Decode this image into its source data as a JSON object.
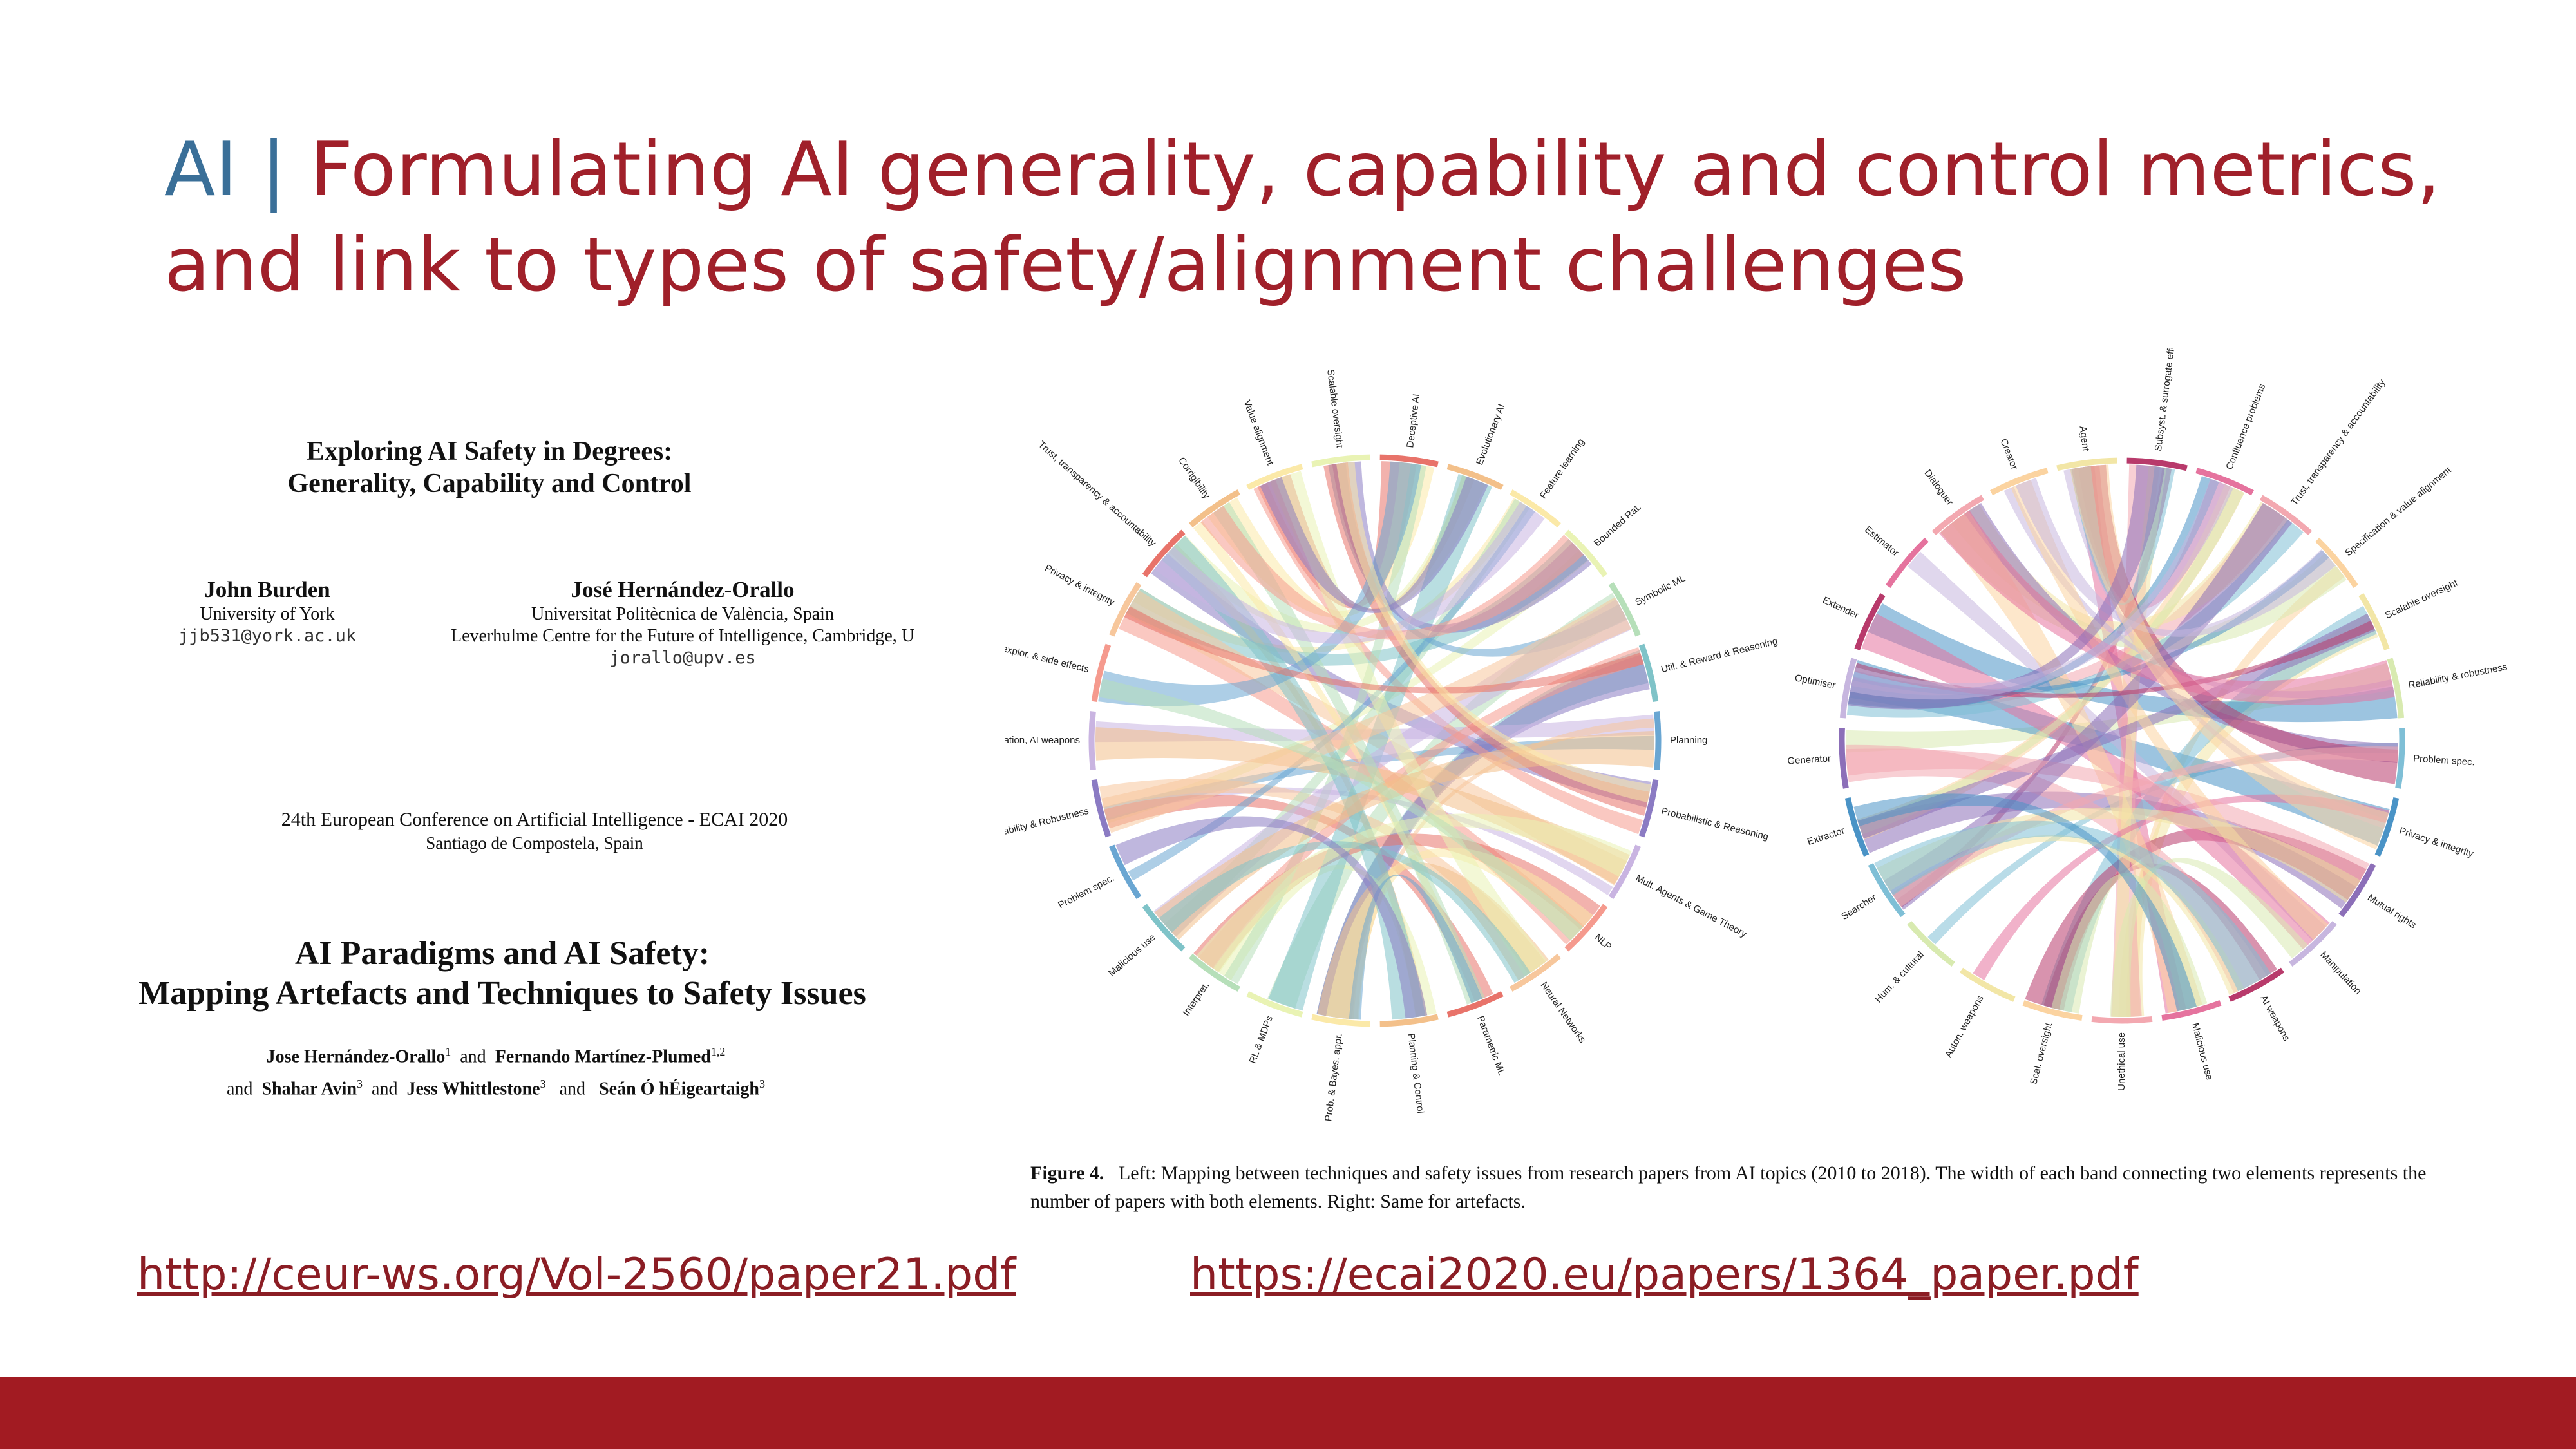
{
  "slide": {
    "title_prefix": "AI",
    "title_separator": "|",
    "title_main": "Formulating AI generality, capability and control metrics, and link to types of safety/alignment challenges",
    "accent_color": "#a0202a",
    "prefix_color": "#3a6f98",
    "footer_color": "#a21b22"
  },
  "paper1": {
    "title_line1": "Exploring AI Safety in Degrees:",
    "title_line2": "Generality, Capability and Control",
    "author1": {
      "name": "John Burden",
      "affiliation": "University of York",
      "email": "jjb531@york.ac.uk"
    },
    "author2": {
      "name": "José Hernández-Orallo",
      "affiliation1": "Universitat Politècnica de València, Spain",
      "affiliation2": "Leverhulme Centre for the Future of Intelligence, Cambridge, U",
      "email": "jorallo@upv.es"
    },
    "conference_line1": "24th European Conference on Artificial Intelligence - ECAI 2020",
    "conference_line2": "Santiago de Compostela, Spain"
  },
  "paper2": {
    "title_line1": "AI Paradigms and AI Safety:",
    "title_line2": "Mapping Artefacts and Techniques to Safety Issues",
    "authors_line1_a": "Jose Hernández-Orallo",
    "authors_line1_a_sup": "1",
    "authors_and1": "and",
    "authors_line1_b": "Fernando Martínez-Plumed",
    "authors_line1_b_sup": "1,2",
    "authors_and2": "and",
    "authors_line2_a": "Shahar Avin",
    "authors_line2_a_sup": "3",
    "authors_and3": "and",
    "authors_line2_b": "Jess Whittlestone",
    "authors_line2_b_sup": "3",
    "authors_and4": "and",
    "authors_line2_c": "Seán Ó hÉigeartaigh",
    "authors_line2_c_sup": "3"
  },
  "figure": {
    "caption_label": "Figure 4.",
    "caption_text": "Left: Mapping between techniques and safety issues from research papers from AI topics (2010 to 2018). The width of each band connecting two elements represents the number of papers with both elements. Right: Same for artefacts.",
    "left_chord": {
      "labels": [
        "Deceptive AI",
        "Evolutionary AI",
        "Feature learning",
        "Bounded Rat.",
        "Symbolic ML",
        "Util. & Reward & Reasoning",
        "Planning",
        "Probabilistic & Reasoning",
        "Mult. Agents & Game Theory",
        "NLP",
        "Neural Networks",
        "Parametric ML",
        "Planning & Control",
        "Prob. & Bayes. appr.",
        "RL & MDPs",
        "Interpret.",
        "Malicious use",
        "Problem spec.",
        "Reliability & Robustness",
        "Manipulation, AI weapons",
        "Safe explor. & side effects",
        "Privacy & integrity",
        "Trust, transparency & accountability",
        "Corrigibility",
        "Value alignment",
        "Scalable oversight"
      ],
      "colors": [
        "#e8736a",
        "#f3c08a",
        "#fbe9a8",
        "#e9f3b4",
        "#b6dfb9",
        "#7fc3c8",
        "#6aa6d2",
        "#8b7bc3",
        "#c9b4e1",
        "#f59a8e",
        "#f7c79c"
      ]
    },
    "right_chord": {
      "labels": [
        "Subsyst. & surrogate effects",
        "Confluence problems",
        "Trust, transparency & accountability",
        "Specification & value alignment",
        "Scalable oversight",
        "Reliability & robustness",
        "Problem spec.",
        "Privacy & integrity",
        "Mutual rights",
        "Manipulation",
        "AI weapons",
        "Malicious use",
        "Unethical use",
        "Scal. oversight",
        "Auton. weapons",
        "Hum. & cultural",
        "Searcher",
        "Extractor",
        "Generator",
        "Optimiser",
        "Extender",
        "Estimator",
        "Dialoguer",
        "Creator",
        "Agent"
      ],
      "colors": [
        "#b83a6b",
        "#e5739e",
        "#f3a8b0",
        "#fbd3a0",
        "#f2e6a6",
        "#d8eab0",
        "#7fbfd6",
        "#4a93c6",
        "#8c6fb8",
        "#c7b6df"
      ]
    }
  },
  "links": {
    "url1": "http://ceur-ws.org/Vol-2560/paper21.pdf",
    "url2": "https://ecai2020.eu/papers/1364_paper.pdf"
  }
}
